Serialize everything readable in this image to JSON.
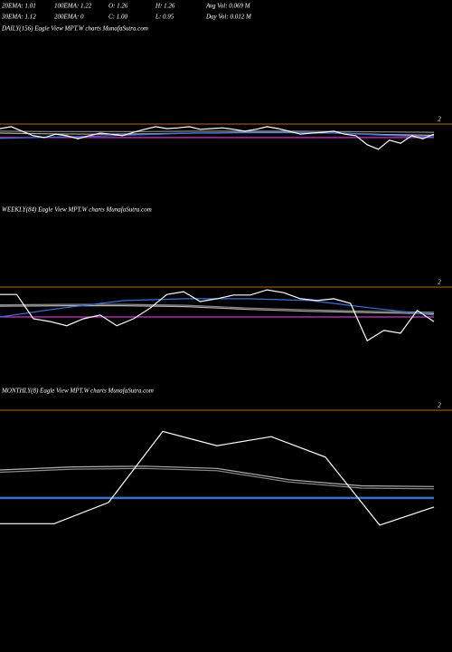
{
  "header": {
    "rows": [
      [
        "20EMA: 1.01",
        "100EMA: 1.22",
        "O: 1.26",
        "H: 1.26",
        "Avg Vol: 0.069 M"
      ],
      [
        "30EMA: 1.12",
        "200EMA: 0",
        "C: 1.00",
        "L: 0.95",
        "Day Vol: 0.012 M"
      ]
    ]
  },
  "chart_data": [
    {
      "type": "line",
      "title": "DAILY(156) Eagle  View  MPT.W charts MunafaSutra.com",
      "ylim": [
        0,
        2.2
      ],
      "yticks": [
        2
      ],
      "grid": true,
      "grid_color": "#b8662a",
      "series": [
        {
          "name": "100EMA",
          "color": "#8a8a8a",
          "values": [
            1.81,
            1.8,
            1.8,
            1.8,
            1.81,
            1.81,
            1.81,
            1.8,
            1.79,
            1.78
          ]
        },
        {
          "name": "30EMA",
          "color": "#b0b0b0",
          "values": [
            1.76,
            1.74,
            1.73,
            1.74,
            1.76,
            1.77,
            1.77,
            1.76,
            1.72,
            1.7
          ]
        },
        {
          "color": "#cc33cc",
          "values": [
            1.64,
            1.64
          ]
        },
        {
          "name": "20EMA",
          "color": "#3a6fd8",
          "values": [
            1.62,
            1.65,
            1.68,
            1.72,
            1.76,
            1.78,
            1.78,
            1.76,
            1.7,
            1.66
          ]
        },
        {
          "color": "#ffffff",
          "values": [
            1.88,
            1.93,
            1.81,
            1.69,
            1.64,
            1.73,
            1.69,
            1.61,
            1.69,
            1.76,
            1.73,
            1.69,
            1.78,
            1.86,
            1.93,
            1.88,
            1.9,
            1.93,
            1.86,
            1.88,
            1.9,
            1.86,
            1.81,
            1.86,
            1.93,
            1.88,
            1.81,
            1.73,
            1.76,
            1.78,
            1.81,
            1.73,
            1.69,
            1.45,
            1.33,
            1.57,
            1.49,
            1.69,
            1.61,
            1.73
          ]
        }
      ]
    },
    {
      "type": "line",
      "title": "WEEKLY(84) Eagle  View  MPT.W charts MunafaSutra.com",
      "ylim": [
        0,
        2.2
      ],
      "yticks": [
        2
      ],
      "grid": true,
      "grid_color": "#b8662a",
      "series": [
        {
          "name": "100EMA",
          "color": "#8a8a8a",
          "values": [
            1.62,
            1.63,
            1.63,
            1.61,
            1.55,
            1.51,
            1.48,
            1.46
          ]
        },
        {
          "name": "30EMA",
          "color": "#b0b0b0",
          "values": [
            1.59,
            1.6,
            1.6,
            1.58,
            1.52,
            1.48,
            1.45,
            1.43
          ]
        },
        {
          "color": "#cc33cc",
          "values": [
            1.36,
            1.36
          ]
        },
        {
          "name": "20EMA",
          "color": "#3a6fd8",
          "values": [
            1.36,
            1.55,
            1.71,
            1.75,
            1.75,
            1.71,
            1.55,
            1.4
          ]
        },
        {
          "color": "#ffffff",
          "values": [
            1.84,
            1.84,
            1.32,
            1.26,
            1.17,
            1.32,
            1.4,
            1.17,
            1.32,
            1.55,
            1.84,
            1.9,
            1.69,
            1.75,
            1.83,
            1.83,
            1.94,
            1.88,
            1.75,
            1.71,
            1.75,
            1.65,
            0.85,
            1.07,
            1.01,
            1.5,
            1.26
          ]
        }
      ]
    },
    {
      "type": "line",
      "title": "MONTHLY(8) Eagle  View  MPT.W charts MunafaSutra.com",
      "ylim": [
        0,
        2.2
      ],
      "yticks": [
        2
      ],
      "grid": true,
      "grid_color": "#b8662a",
      "series": [
        {
          "name": "100EMA",
          "color": "#8a8a8a",
          "values": [
            1.18,
            1.22,
            1.23,
            1.2,
            1.05,
            0.97,
            0.96
          ]
        },
        {
          "name": "30EMA",
          "color": "#b0b0b0",
          "values": [
            1.21,
            1.25,
            1.26,
            1.23,
            1.08,
            1.0,
            0.99
          ]
        },
        {
          "name": "20EMA",
          "color": "#3a6fd8",
          "values": [
            0.84,
            0.84
          ]
        },
        {
          "color": "#ffffff",
          "values": [
            0.5,
            0.5,
            0.78,
            1.72,
            1.53,
            1.65,
            1.38,
            0.48,
            0.72
          ]
        }
      ]
    }
  ]
}
